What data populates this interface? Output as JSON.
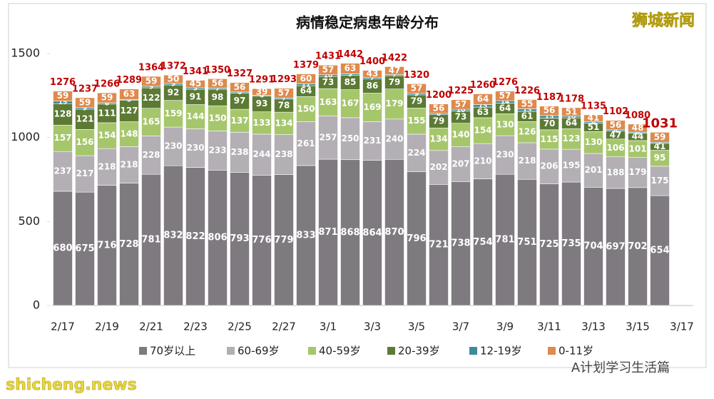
{
  "chart_data": {
    "type": "stacked-bar",
    "title": "病情稳定病患年龄分布",
    "categories": [
      "2/17",
      null,
      "2/19",
      null,
      "2/21",
      null,
      "2/23",
      null,
      "2/25",
      null,
      "2/27",
      null,
      "3/1",
      null,
      "3/3",
      null,
      "3/5",
      null,
      "3/7",
      null,
      "3/9",
      null,
      "3/11",
      null,
      "3/13",
      null,
      "3/15",
      null,
      "3/17"
    ],
    "series": [
      {
        "name": "70岁以上",
        "color": "#7f7a80",
        "values": [
          680,
          675,
          716,
          728,
          781,
          832,
          822,
          806,
          793,
          776,
          779,
          833,
          871,
          868,
          864,
          870,
          796,
          721,
          738,
          754,
          781,
          751,
          725,
          735,
          704,
          697,
          702,
          654,
          null
        ]
      },
      {
        "name": "60-69岁",
        "color": "#b3afb5",
        "values": [
          237,
          217,
          218,
          218,
          228,
          230,
          230,
          233,
          238,
          244,
          238,
          261,
          257,
          250,
          231,
          240,
          224,
          202,
          207,
          210,
          230,
          218,
          206,
          195,
          201,
          188,
          179,
          175,
          null
        ]
      },
      {
        "name": "40-59岁",
        "color": "#a6c66c",
        "values": [
          157,
          156,
          154,
          148,
          165,
          159,
          144,
          150,
          137,
          133,
          134,
          150,
          163,
          167,
          169,
          179,
          155,
          134,
          140,
          154,
          130,
          126,
          115,
          123,
          130,
          106,
          101,
          95,
          null
        ]
      },
      {
        "name": "20-39岁",
        "color": "#5c7a34",
        "values": [
          128,
          121,
          111,
          127,
          122,
          92,
          91,
          98,
          97,
          93,
          78,
          64,
          73,
          85,
          86,
          79,
          79,
          79,
          73,
          63,
          64,
          61,
          70,
          64,
          51,
          47,
          44,
          41,
          null
        ]
      },
      {
        "name": "12-19岁",
        "color": "#3c8c9c",
        "values": [
          15,
          9,
          8,
          5,
          9,
          9,
          9,
          7,
          6,
          6,
          7,
          11,
          10,
          9,
          7,
          7,
          9,
          8,
          10,
          15,
          14,
          15,
          15,
          10,
          8,
          8,
          6,
          7,
          null
        ]
      },
      {
        "name": "0-11岁",
        "color": "#de8a4c",
        "values": [
          59,
          59,
          59,
          63,
          59,
          50,
          45,
          56,
          56,
          39,
          57,
          60,
          57,
          63,
          43,
          47,
          57,
          56,
          57,
          64,
          57,
          55,
          56,
          51,
          41,
          56,
          48,
          59,
          null
        ]
      }
    ],
    "totals": [
      1276,
      1237,
      1266,
      1289,
      1364,
      1372,
      1341,
      1350,
      1327,
      1291,
      1293,
      1379,
      1431,
      1442,
      1400,
      1422,
      1320,
      1200,
      1225,
      1260,
      1276,
      1226,
      1187,
      1178,
      1135,
      1102,
      1080,
      1031,
      null
    ],
    "ylim": [
      0,
      1500
    ],
    "yticks": [
      0,
      500,
      1000,
      1500
    ],
    "legend": "bottom"
  },
  "watermarks": {
    "top": "狮城新闻",
    "bottom_left": "shicheng.news",
    "bottom_right": "A计划学习生活篇"
  }
}
